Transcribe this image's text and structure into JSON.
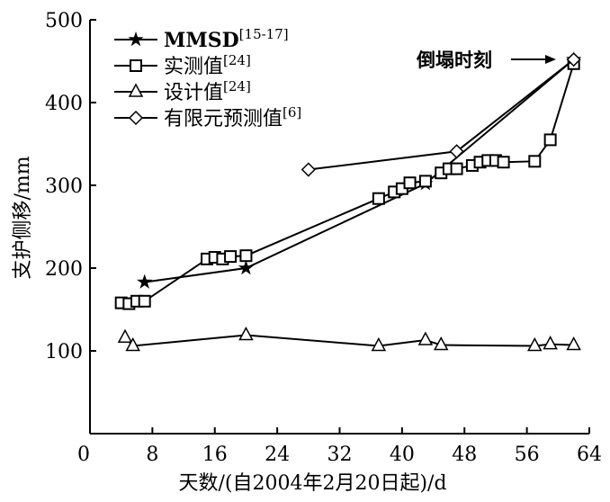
{
  "chart_data": {
    "type": "line",
    "title": "",
    "xlabel": "天数/(自2004年2月20日起)/d",
    "ylabel": "支护侧移/mm",
    "xlim": [
      0,
      64
    ],
    "ylim": [
      0,
      500
    ],
    "xticks": [
      0,
      8,
      16,
      24,
      32,
      40,
      48,
      56,
      64
    ],
    "yticks": [
      100,
      200,
      300,
      400,
      500
    ],
    "grid": false,
    "legend_position": "top-left",
    "annotation": "倒塌时刻",
    "series": [
      {
        "name": "MMSD",
        "sup": "[15-17]",
        "marker": "star",
        "x": [
          7,
          20,
          43,
          62
        ],
        "y": [
          183,
          200,
          302,
          452
        ]
      },
      {
        "name": "实测值",
        "sup": "[24]",
        "marker": "square",
        "x": [
          4,
          5,
          6,
          7,
          15,
          16,
          17,
          18,
          20,
          37,
          39,
          40,
          41,
          43,
          45,
          46,
          47,
          49,
          50,
          51,
          52,
          53,
          57,
          59,
          62
        ],
        "y": [
          158,
          157,
          160,
          160,
          211,
          213,
          211,
          214,
          215,
          284,
          292,
          296,
          303,
          305,
          315,
          320,
          320,
          324,
          328,
          330,
          330,
          328,
          329,
          355,
          447
        ]
      },
      {
        "name": "设计值",
        "sup": "[24]",
        "marker": "triangle",
        "x": [
          4.5,
          5.5,
          20,
          37,
          43,
          45,
          57,
          59,
          62
        ],
        "y": [
          116,
          106,
          119,
          106,
          113,
          107,
          106,
          108,
          107
        ]
      },
      {
        "name": "有限元预测值",
        "sup": "[6]",
        "marker": "diamond",
        "x": [
          28,
          47,
          62
        ],
        "y": [
          319,
          341,
          452
        ]
      }
    ]
  }
}
